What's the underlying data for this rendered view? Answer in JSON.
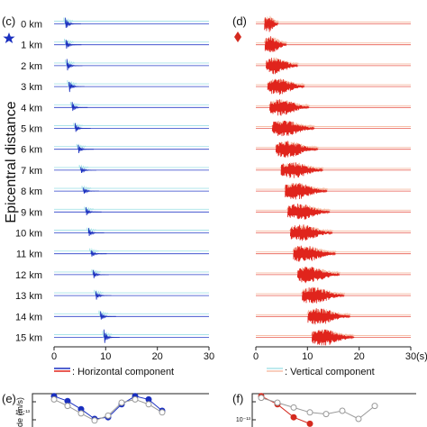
{
  "panels": {
    "c": {
      "label": "(c)",
      "marker": "star",
      "marker_color": "#1a2fbf"
    },
    "d": {
      "label": "(d)",
      "marker": "diamond",
      "marker_color": "#d42a1f"
    },
    "e": {
      "label": "(e)",
      "ylabel_partial": "de (m/s)",
      "tick_partial": "10⁻¹³"
    },
    "f": {
      "label": "(f)",
      "tick_partial": "10⁻¹³"
    }
  },
  "ylabel": "Epicentral distance",
  "x_unit_partial": "(s)",
  "legend": {
    "horizontal": ": Horizontal component",
    "vertical": ": Vertical component"
  },
  "colors": {
    "c_horizontal": "#1a2fbf",
    "c_vertical": "#a9e3e8",
    "d_horizontal": "#e0241c",
    "d_vertical": "#f6bfa8",
    "baseline_c": "#2a3fc9",
    "baseline_d": "#e85a4f"
  },
  "chart_data": [
    {
      "panel": "(c)",
      "type": "line",
      "x_range": [
        0,
        30
      ],
      "x_ticks": [
        "0",
        "10",
        "20",
        "30"
      ],
      "distance_labels": [
        "0 km",
        "1 km",
        "2 km",
        "3 km",
        "4 km",
        "5 km",
        "6 km",
        "7 km",
        "8 km",
        "9 km",
        "10 km",
        "11 km",
        "12 km",
        "13 km",
        "14 km",
        "15 km"
      ],
      "arrival_times_s": [
        2.5,
        2.6,
        2.8,
        3.2,
        3.8,
        4.4,
        5.0,
        5.5,
        6.0,
        6.5,
        7.0,
        7.5,
        7.9,
        8.4,
        9.3,
        10.0
      ],
      "relative_amplitude": [
        1.0,
        0.9,
        0.95,
        1.0,
        0.8,
        0.75,
        0.7,
        0.7,
        0.7,
        0.7,
        0.7,
        0.75,
        0.7,
        0.8,
        0.9,
        1.1
      ],
      "series": [
        "Horizontal component",
        "Vertical component"
      ]
    },
    {
      "panel": "(d)",
      "type": "line",
      "x_range": [
        0,
        30
      ],
      "x_ticks": [
        "0",
        "10",
        "20",
        "30"
      ],
      "arrival_times_s": [
        2.0,
        2.1,
        2.3,
        2.6,
        3.0,
        3.5,
        4.2,
        5.2,
        6.0,
        6.5,
        7.0,
        7.6,
        8.4,
        9.3,
        10.4,
        11.2
      ],
      "coda_duration_s": [
        1.5,
        3,
        5,
        6,
        6.5,
        7,
        7,
        7,
        7,
        7,
        7,
        7,
        7,
        7,
        7,
        7
      ],
      "series": [
        "Horizontal component",
        "Vertical component"
      ]
    },
    {
      "panel": "(e)",
      "type": "line",
      "series": [
        {
          "values": [
            0.95,
            0.8,
            0.55,
            0.25,
            0.3,
            0.7,
            0.95,
            0.85,
            0.5
          ]
        },
        {
          "values": [
            0.85,
            0.65,
            0.42,
            0.2,
            0.35,
            0.75,
            0.85,
            0.7,
            0.45
          ]
        }
      ]
    },
    {
      "panel": "(f)",
      "type": "line",
      "series": [
        {
          "values": [
            0.95,
            0.7,
            0.3,
            0.1
          ]
        },
        {
          "values": [
            0.9,
            0.75,
            0.6,
            0.45,
            0.4,
            0.5,
            0.25,
            0.65
          ]
        }
      ]
    }
  ]
}
